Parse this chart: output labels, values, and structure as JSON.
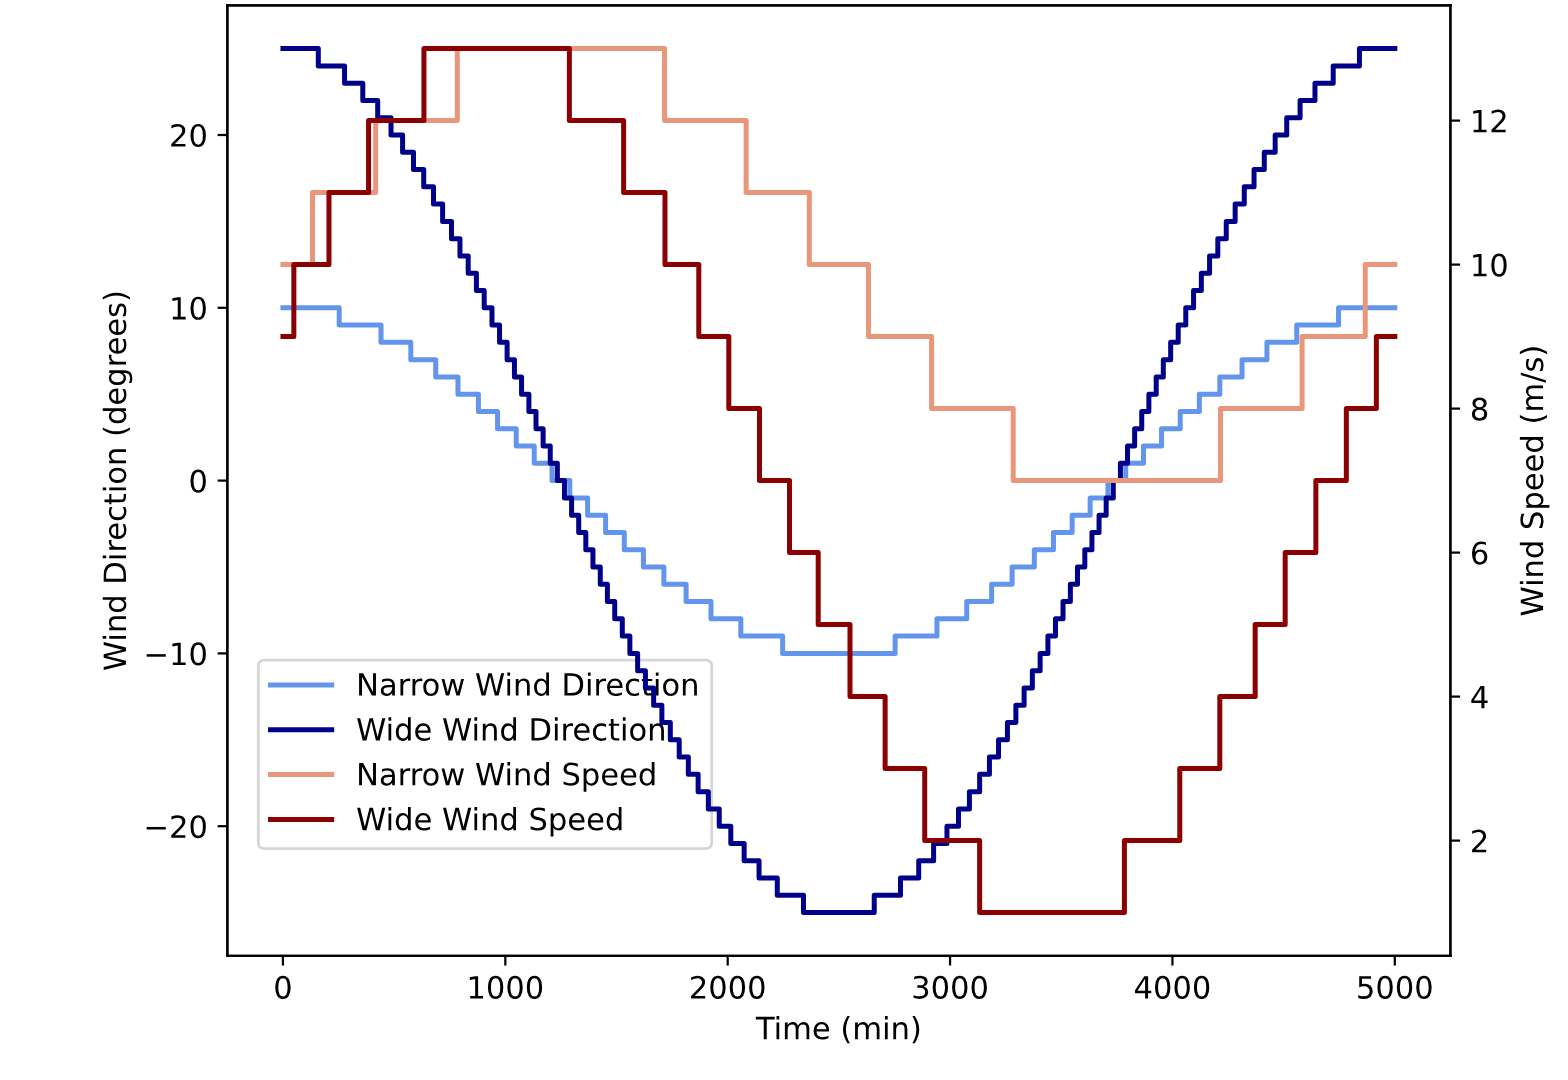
{
  "chart_data": {
    "type": "step",
    "xlabel": "Time (min)",
    "ylabel": "Wind Direction (degrees)",
    "y2label": "Wind Speed (m/s)",
    "xlim": [
      -250,
      5250
    ],
    "xticks": [
      0,
      1000,
      2000,
      3000,
      4000,
      5000
    ],
    "ylim": [
      -27.5,
      27.5
    ],
    "yticks": [
      -20,
      -10,
      0,
      10,
      20
    ],
    "y2lim": [
      0.4,
      13.6
    ],
    "y2ticks": [
      2,
      4,
      6,
      8,
      10,
      12
    ],
    "grid": false,
    "legend": "bottom left",
    "series": [
      {
        "name": "Narrow Wind Direction",
        "color": "#6495ed",
        "x": [
          0,
          253,
          441,
          575,
          687,
          787,
          879,
          965,
          1049,
          1130,
          1210,
          1290,
          1370,
          1451,
          1535,
          1621,
          1713,
          1813,
          1925,
          2059,
          2247,
          2753,
          2941,
          3075,
          3187,
          3279,
          3379,
          3465,
          3549,
          3630,
          3710,
          3790,
          3870,
          3951,
          4035,
          4121,
          4213,
          4313,
          4425,
          4559,
          4747,
          5000
        ],
        "values": [
          10,
          9,
          8,
          7,
          6,
          5,
          4,
          3,
          2,
          1,
          0,
          -1,
          -2,
          -3,
          -4,
          -5,
          -6,
          -7,
          -8,
          -9,
          -10,
          -9,
          -8,
          -7,
          -6,
          -5,
          -4,
          -3,
          -2,
          -1,
          0,
          1,
          2,
          3,
          4,
          5,
          6,
          7,
          8,
          9,
          10,
          10
        ]
      },
      {
        "name": "Wide Wind Direction",
        "color": "#00008b",
        "x": [
          0,
          159,
          277,
          359,
          426,
          486,
          538,
          587,
          633,
          677,
          718,
          758,
          796,
          833,
          870,
          905,
          940,
          974,
          1008,
          1041,
          1073,
          1106,
          1138,
          1170,
          1202,
          1234,
          1266,
          1298,
          1330,
          1362,
          1394,
          1427,
          1459,
          1492,
          1526,
          1560,
          1595,
          1630,
          1667,
          1704,
          1742,
          1782,
          1823,
          1867,
          1913,
          1962,
          2014,
          2074,
          2141,
          2223,
          2341,
          2659,
          2777,
          2859,
          2926,
          2986,
          3038,
          3087,
          3133,
          3177,
          3218,
          3258,
          3296,
          3333,
          3370,
          3405,
          3440,
          3474,
          3508,
          3541,
          3573,
          3606,
          3638,
          3670,
          3702,
          3734,
          3766,
          3798,
          3830,
          3862,
          3894,
          3927,
          3959,
          3992,
          4026,
          4060,
          4095,
          4130,
          4167,
          4204,
          4242,
          4282,
          4323,
          4367,
          4413,
          4462,
          4514,
          4574,
          4641,
          4723,
          4841,
          5000
        ],
        "values": [
          25,
          24,
          23,
          22,
          21,
          20,
          19,
          18,
          17,
          16,
          15,
          14,
          13,
          12,
          11,
          10,
          9,
          8,
          7,
          6,
          5,
          4,
          3,
          2,
          1,
          0,
          -1,
          -2,
          -3,
          -4,
          -5,
          -6,
          -7,
          -8,
          -9,
          -10,
          -11,
          -12,
          -13,
          -14,
          -15,
          -16,
          -17,
          -18,
          -19,
          -20,
          -21,
          -22,
          -23,
          -24,
          -25,
          -24,
          -23,
          -22,
          -21,
          -20,
          -19,
          -18,
          -17,
          -16,
          -15,
          -14,
          -13,
          -12,
          -11,
          -10,
          -9,
          -8,
          -7,
          -6,
          -5,
          -4,
          -3,
          -2,
          -1,
          0,
          1,
          2,
          3,
          4,
          5,
          6,
          7,
          8,
          9,
          10,
          11,
          12,
          13,
          14,
          15,
          16,
          17,
          18,
          19,
          20,
          21,
          22,
          23,
          24,
          25,
          25
        ]
      },
      {
        "name": "Narrow Wind Speed",
        "color": "#e9967a",
        "axis": "y2",
        "x": [
          0,
          133,
          417,
          784,
          1716,
          2083,
          2367,
          2633,
          2917,
          3284,
          4216,
          4583,
          4867,
          5000
        ],
        "values": [
          10,
          11,
          12,
          13,
          12,
          11,
          10,
          9,
          8,
          7,
          8,
          9,
          10,
          10
        ]
      },
      {
        "name": "Wide Wind Speed",
        "color": "#8b0000",
        "axis": "y2",
        "x": [
          0,
          49,
          207,
          385,
          634,
          1288,
          1532,
          1718,
          1870,
          2005,
          2143,
          2278,
          2407,
          2550,
          2708,
          2886,
          3133,
          3784,
          4033,
          4213,
          4372,
          4507,
          4645,
          4782,
          4917,
          5000
        ],
        "values": [
          9,
          10,
          11,
          12,
          13,
          12,
          11,
          10,
          9,
          8,
          7,
          6,
          5,
          4,
          3,
          2,
          1,
          2,
          3,
          4,
          5,
          6,
          7,
          8,
          9,
          9
        ]
      }
    ]
  }
}
